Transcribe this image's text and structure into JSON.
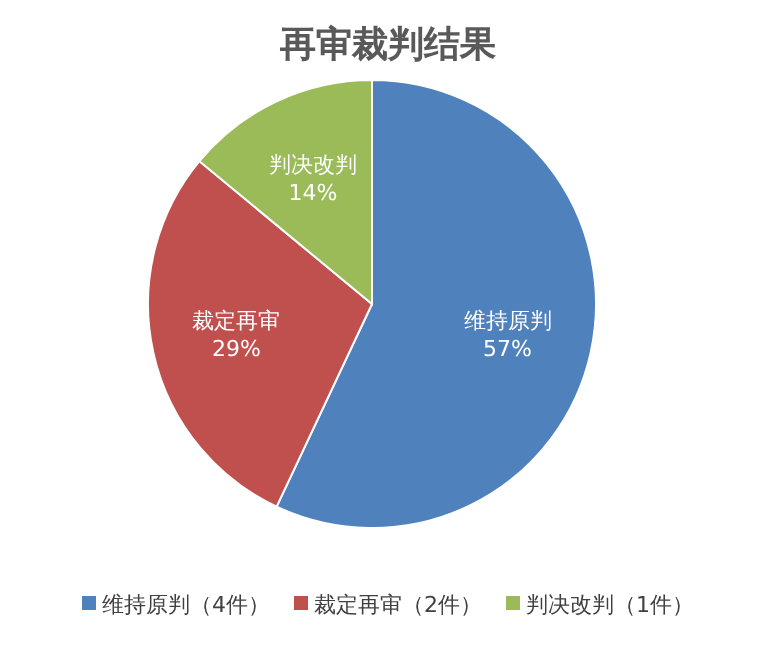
{
  "chart_data": {
    "type": "pie",
    "title": "再审裁判结果",
    "categories": [
      "维持原判（4件）",
      "裁定再审（2件）",
      "判决改判（1件）"
    ],
    "values": [
      57,
      29,
      14
    ],
    "value_labels": [
      "维持原判\n57%",
      "裁定再审\n29%",
      "判决改判\n14%"
    ],
    "colors": [
      "#4f81bd",
      "#c0504d",
      "#9bbb59"
    ],
    "legend": "bottom"
  }
}
